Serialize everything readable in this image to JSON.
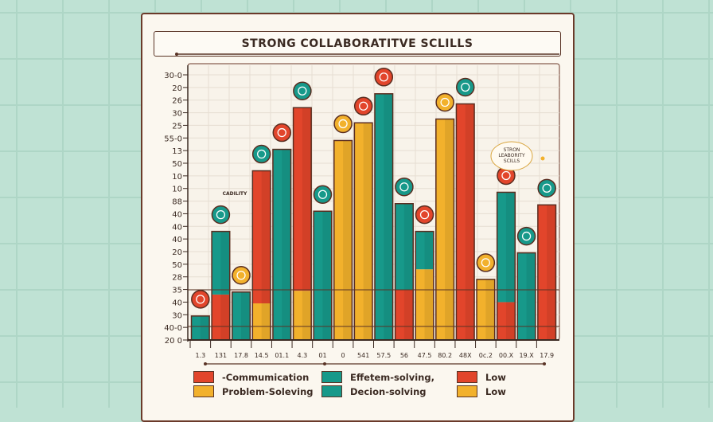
{
  "chart_data": {
    "type": "bar",
    "title": "STRONG COLLABORATITVE SCLILLS",
    "xlabel": "",
    "ylabel": "",
    "y_tick_labels": [
      "20 0",
      "40-0",
      "30",
      "40",
      "35",
      "28",
      "50",
      "20",
      "40",
      "40",
      "40",
      "88",
      "10",
      "10",
      "50",
      "13",
      "55-0",
      "25",
      "30",
      "26",
      "20",
      "30-0"
    ],
    "x_tick_labels": [
      "1.3",
      "131",
      "17.8",
      "14.5",
      "01.1",
      "4.3",
      "01",
      "0",
      "541",
      "57.5",
      "56",
      "47.5",
      "80.2",
      "48X",
      "0c.2",
      "00.X",
      "19.X",
      "17.9"
    ],
    "ylim_tick_index": [
      0,
      21
    ],
    "grid": true,
    "legend_placement": "bottom",
    "colors": {
      "teal": "#17998a",
      "red": "#e2452b",
      "yellow": "#f2b12c"
    },
    "bars": [
      {
        "segments": [
          {
            "color": "teal",
            "value": 1.9
          }
        ],
        "icon_color": "red"
      },
      {
        "segments": [
          {
            "color": "red",
            "value": 3.6
          },
          {
            "color": "teal",
            "value": 5.0
          }
        ],
        "icon_color": "teal"
      },
      {
        "segments": [
          {
            "color": "teal",
            "value": 3.8
          }
        ],
        "icon_color": "yellow"
      },
      {
        "segments": [
          {
            "color": "yellow",
            "value": 2.9
          },
          {
            "color": "red",
            "value": 10.5
          }
        ],
        "icon_color": "teal"
      },
      {
        "segments": [
          {
            "color": "teal",
            "value": 15.1
          }
        ],
        "icon_color": "red"
      },
      {
        "segments": [
          {
            "color": "yellow",
            "value": 3.9
          },
          {
            "color": "red",
            "value": 14.5
          }
        ],
        "icon_color": "teal"
      },
      {
        "segments": [
          {
            "color": "teal",
            "value": 10.2
          }
        ],
        "icon_color": "teal"
      },
      {
        "segments": [
          {
            "color": "yellow",
            "value": 15.8
          }
        ],
        "icon_color": "yellow"
      },
      {
        "segments": [
          {
            "color": "yellow",
            "value": 17.2
          }
        ],
        "icon_color": "red"
      },
      {
        "segments": [
          {
            "color": "teal",
            "value": 19.5
          }
        ],
        "icon_color": "red"
      },
      {
        "segments": [
          {
            "color": "red",
            "value": 4.0
          },
          {
            "color": "teal",
            "value": 6.8
          }
        ],
        "icon_color": "teal"
      },
      {
        "segments": [
          {
            "color": "yellow",
            "value": 5.6
          },
          {
            "color": "teal",
            "value": 3.0
          }
        ],
        "icon_color": "red"
      },
      {
        "segments": [
          {
            "color": "yellow",
            "value": 17.5
          }
        ],
        "icon_color": "yellow"
      },
      {
        "segments": [
          {
            "color": "red",
            "value": 18.7
          }
        ],
        "icon_color": "teal"
      },
      {
        "segments": [
          {
            "color": "yellow",
            "value": 4.8
          }
        ],
        "icon_color": "yellow"
      },
      {
        "segments": [
          {
            "color": "red",
            "value": 3.0
          },
          {
            "color": "teal",
            "value": 8.7
          }
        ],
        "icon_color": "red"
      },
      {
        "segments": [
          {
            "color": "teal",
            "value": 6.9
          }
        ],
        "icon_color": "teal"
      },
      {
        "segments": [
          {
            "color": "red",
            "value": 10.7
          }
        ],
        "icon_color": "teal"
      }
    ],
    "annotations": {
      "small_label": "CADILITY",
      "callout": [
        "STRON",
        "LEABORITY",
        "SCILLS"
      ]
    },
    "legend": [
      {
        "label": "-Commumication",
        "color": "red"
      },
      {
        "label": "Problem-Soleving",
        "color": "yellow"
      },
      {
        "label": "Effetem-solving,",
        "color": "teal"
      },
      {
        "label": "Decion-solving",
        "color": "teal"
      },
      {
        "label": "Low",
        "color": "red"
      },
      {
        "label": "Low",
        "color": "yellow"
      }
    ]
  }
}
